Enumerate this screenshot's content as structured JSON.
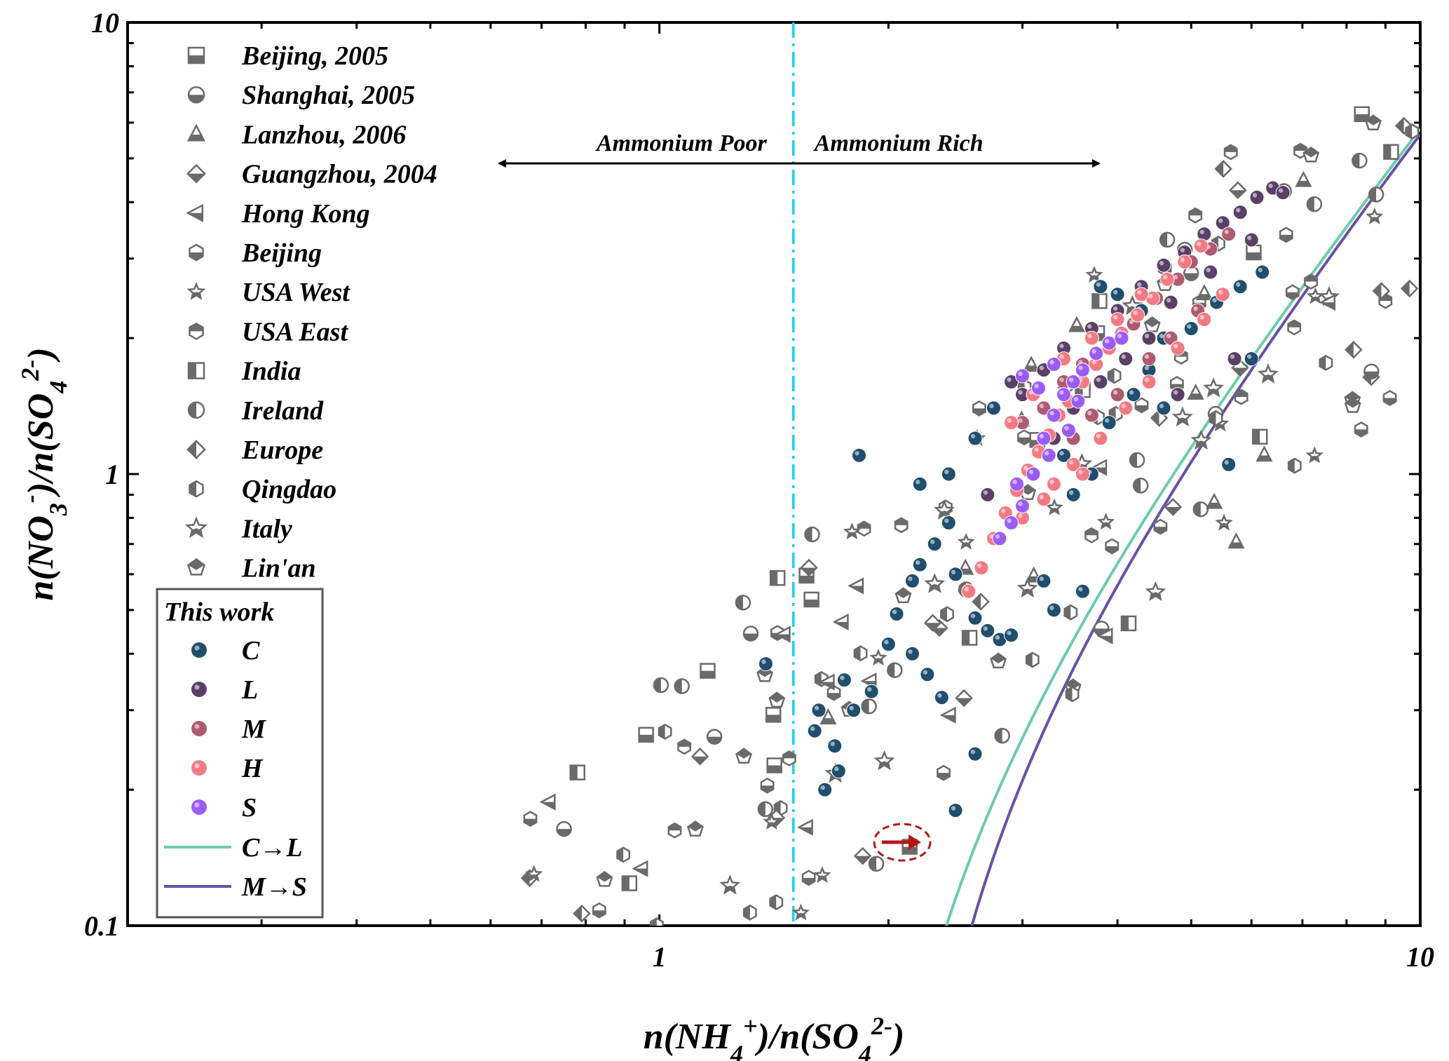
{
  "chart_data": {
    "type": "scatter",
    "x_scale": "log",
    "y_scale": "log",
    "xlim": [
      0.2,
      10
    ],
    "ylim": [
      0.1,
      10
    ],
    "xlabel": "n(NH4+)/n(SO42-)",
    "ylabel": "n(NO3-)/n(SO42-)",
    "x_ticks": [
      {
        "value": 1,
        "label": "1"
      },
      {
        "value": 10,
        "label": "10"
      }
    ],
    "y_ticks": [
      {
        "value": 0.1,
        "label": "0.1"
      },
      {
        "value": 1,
        "label": "1"
      },
      {
        "value": 10,
        "label": "10"
      }
    ],
    "divider_x": 1.5,
    "regions": {
      "left": "Ammonium Poor",
      "right": "Ammonium Rich"
    },
    "legend_literature": [
      {
        "name": "Beijing, 2005",
        "marker": "square-half"
      },
      {
        "name": "Shanghai, 2005",
        "marker": "circle-half"
      },
      {
        "name": "Lanzhou, 2006",
        "marker": "triangle-up"
      },
      {
        "name": "Guangzhou, 2004",
        "marker": "diamond-half"
      },
      {
        "name": "Hong Kong",
        "marker": "triangle-left"
      },
      {
        "name": "Beijing",
        "marker": "hexagon-half"
      },
      {
        "name": "USA West",
        "marker": "star-small"
      },
      {
        "name": "USA East",
        "marker": "hexagon-top"
      },
      {
        "name": "India",
        "marker": "square-vhalf"
      },
      {
        "name": "Ireland",
        "marker": "circle-vhalf"
      },
      {
        "name": "Europe",
        "marker": "diamond-vhalf"
      },
      {
        "name": "Qingdao",
        "marker": "hexagon-vhalf"
      },
      {
        "name": "Italy",
        "marker": "star"
      },
      {
        "name": "Lin'an",
        "marker": "pentagon"
      }
    ],
    "legend_this_work_title": "This work",
    "series": [
      {
        "name": "C",
        "color": "#1f4e6e",
        "points": [
          [
            1.38,
            0.38
          ],
          [
            1.6,
            0.27
          ],
          [
            1.62,
            0.3
          ],
          [
            1.7,
            0.25
          ],
          [
            1.72,
            0.22
          ],
          [
            1.65,
            0.2
          ],
          [
            1.8,
            0.3
          ],
          [
            1.75,
            0.35
          ],
          [
            1.9,
            0.33
          ],
          [
            2.0,
            0.42
          ],
          [
            2.05,
            0.49
          ],
          [
            2.15,
            0.58
          ],
          [
            2.2,
            0.63
          ],
          [
            2.3,
            0.7
          ],
          [
            2.4,
            0.78
          ],
          [
            2.45,
            0.6
          ],
          [
            2.55,
            0.55
          ],
          [
            2.6,
            0.48
          ],
          [
            2.7,
            0.45
          ],
          [
            2.8,
            0.43
          ],
          [
            2.9,
            0.44
          ],
          [
            3.2,
            0.58
          ],
          [
            3.3,
            0.5
          ],
          [
            3.6,
            0.55
          ],
          [
            2.6,
            0.24
          ],
          [
            2.45,
            0.18
          ],
          [
            2.35,
            0.32
          ],
          [
            2.25,
            0.36
          ],
          [
            2.15,
            0.4
          ],
          [
            1.83,
            1.1
          ],
          [
            2.2,
            0.95
          ],
          [
            2.4,
            1.0
          ],
          [
            2.6,
            1.2
          ],
          [
            2.75,
            1.4
          ],
          [
            3.0,
            1.3
          ],
          [
            3.4,
            1.1
          ],
          [
            3.7,
            1.0
          ],
          [
            3.5,
            0.9
          ],
          [
            3.9,
            1.3
          ],
          [
            4.2,
            1.5
          ],
          [
            4.4,
            1.7
          ],
          [
            4.6,
            2.0
          ],
          [
            4.3,
            2.3
          ],
          [
            4.0,
            2.5
          ],
          [
            3.8,
            2.6
          ],
          [
            5.0,
            2.1
          ],
          [
            5.4,
            2.4
          ],
          [
            5.8,
            2.6
          ],
          [
            6.2,
            2.8
          ],
          [
            6.0,
            1.8
          ],
          [
            5.6,
            1.05
          ],
          [
            4.6,
            1.4
          ],
          [
            4.1,
            1.8
          ]
        ]
      },
      {
        "name": "L",
        "color": "#5a3f66",
        "points": [
          [
            2.9,
            1.6
          ],
          [
            3.0,
            1.5
          ],
          [
            3.2,
            1.7
          ],
          [
            3.4,
            1.9
          ],
          [
            3.7,
            2.1
          ],
          [
            4.0,
            2.3
          ],
          [
            4.3,
            2.6
          ],
          [
            4.6,
            2.9
          ],
          [
            4.9,
            3.1
          ],
          [
            5.2,
            3.4
          ],
          [
            5.5,
            3.6
          ],
          [
            5.8,
            3.8
          ],
          [
            6.1,
            4.1
          ],
          [
            6.4,
            4.3
          ],
          [
            6.6,
            4.2
          ],
          [
            6.0,
            3.3
          ],
          [
            5.3,
            2.8
          ],
          [
            4.7,
            2.4
          ],
          [
            4.4,
            2.0
          ],
          [
            4.1,
            1.8
          ],
          [
            3.8,
            1.6
          ],
          [
            3.5,
            1.4
          ],
          [
            3.3,
            1.2
          ],
          [
            3.1,
            1.0
          ],
          [
            5.7,
            1.8
          ],
          [
            4.8,
            1.5
          ],
          [
            2.7,
            0.9
          ]
        ]
      },
      {
        "name": "M",
        "color": "#b05a72",
        "points": [
          [
            3.0,
            1.3
          ],
          [
            3.2,
            1.4
          ],
          [
            3.4,
            1.6
          ],
          [
            3.6,
            1.75
          ],
          [
            3.9,
            1.95
          ],
          [
            4.2,
            2.15
          ],
          [
            4.5,
            2.45
          ],
          [
            4.8,
            2.7
          ],
          [
            5.0,
            2.95
          ],
          [
            5.3,
            3.15
          ],
          [
            5.6,
            3.4
          ],
          [
            4.0,
            1.5
          ],
          [
            3.7,
            1.35
          ],
          [
            3.5,
            1.2
          ],
          [
            4.4,
            1.8
          ],
          [
            4.7,
            2.0
          ],
          [
            5.1,
            2.3
          ]
        ]
      },
      {
        "name": "H",
        "color": "#f37a84",
        "points": [
          [
            2.55,
            0.55
          ],
          [
            2.65,
            0.62
          ],
          [
            2.75,
            0.72
          ],
          [
            2.85,
            0.82
          ],
          [
            2.95,
            0.92
          ],
          [
            3.05,
            1.02
          ],
          [
            3.15,
            1.12
          ],
          [
            3.25,
            1.22
          ],
          [
            3.35,
            1.35
          ],
          [
            3.45,
            1.45
          ],
          [
            3.6,
            1.6
          ],
          [
            3.75,
            1.75
          ],
          [
            3.9,
            1.9
          ],
          [
            4.05,
            2.05
          ],
          [
            4.25,
            2.25
          ],
          [
            4.45,
            2.45
          ],
          [
            4.65,
            2.7
          ],
          [
            4.9,
            2.95
          ],
          [
            5.15,
            3.2
          ],
          [
            3.3,
            0.95
          ],
          [
            3.5,
            1.05
          ],
          [
            3.8,
            1.2
          ],
          [
            4.1,
            1.4
          ],
          [
            4.4,
            1.6
          ],
          [
            4.8,
            1.9
          ],
          [
            5.2,
            2.2
          ],
          [
            5.5,
            2.5
          ],
          [
            3.0,
            0.8
          ],
          [
            3.2,
            0.88
          ],
          [
            3.6,
            1.0
          ],
          [
            2.9,
            1.3
          ],
          [
            3.1,
            1.5
          ],
          [
            3.4,
            1.8
          ],
          [
            3.7,
            2.0
          ],
          [
            4.0,
            2.2
          ],
          [
            4.3,
            2.5
          ]
        ]
      },
      {
        "name": "S",
        "color": "#9b5cf6",
        "points": [
          [
            2.8,
            0.72
          ],
          [
            2.9,
            0.78
          ],
          [
            3.0,
            0.85
          ],
          [
            3.1,
            1.0
          ],
          [
            3.2,
            1.2
          ],
          [
            3.3,
            1.35
          ],
          [
            3.4,
            1.5
          ],
          [
            3.5,
            1.6
          ],
          [
            3.6,
            1.7
          ],
          [
            3.75,
            1.85
          ],
          [
            3.9,
            1.95
          ],
          [
            4.05,
            2.0
          ],
          [
            3.15,
            1.55
          ],
          [
            3.0,
            1.65
          ],
          [
            3.3,
            1.75
          ],
          [
            3.55,
            1.45
          ],
          [
            3.25,
            1.1
          ],
          [
            2.95,
            0.95
          ],
          [
            3.45,
            1.25
          ]
        ]
      }
    ],
    "fit_lines": [
      {
        "name": "C→L",
        "color": "#6dcbad",
        "x0": 1.82,
        "xmax": 10.0
      },
      {
        "name": "M→S",
        "color": "#6650a8",
        "x0": 2.05,
        "xmax": 10.0
      }
    ]
  }
}
